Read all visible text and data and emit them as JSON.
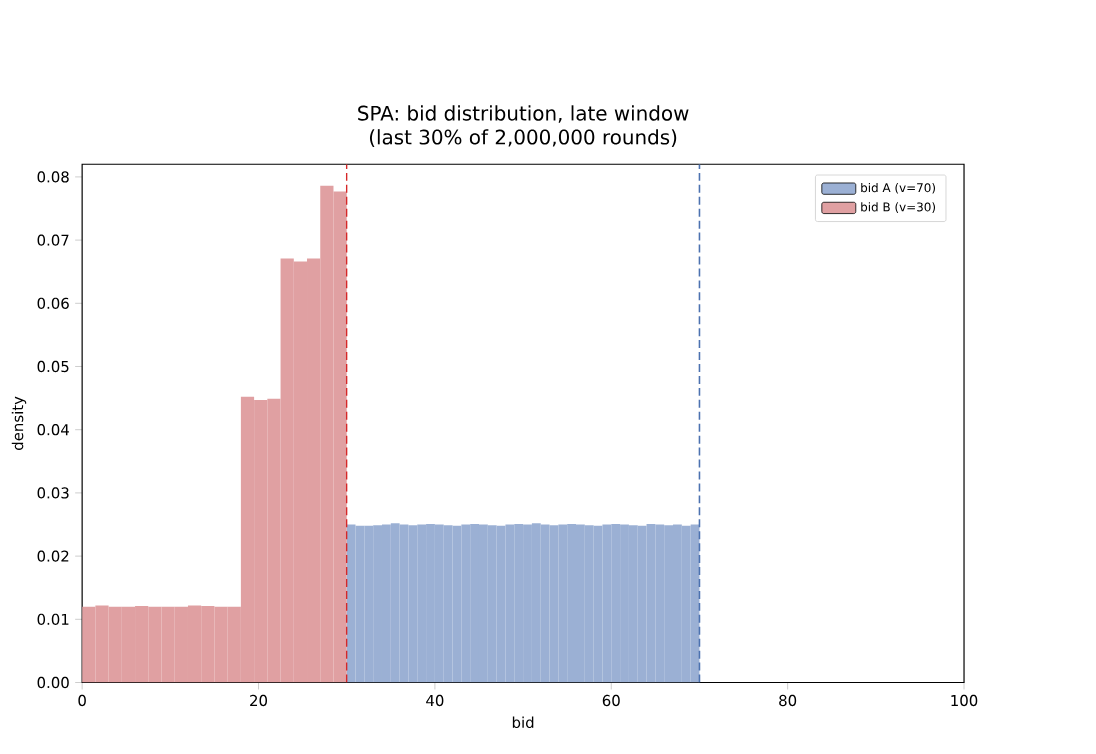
{
  "chart_data": {
    "type": "histogram",
    "title": "SPA: bid distribution, late window",
    "subtitle": "(last 30% of 2,000,000 rounds)",
    "xlabel": "bid",
    "ylabel": "density",
    "bins": [
      0,
      1.5,
      3,
      4.5,
      6,
      7.5,
      9,
      10.5,
      12,
      13.5,
      15,
      16.5,
      18,
      19.5,
      21,
      22.5,
      24,
      25.5,
      27,
      28.5,
      30,
      31,
      32,
      33,
      34,
      35,
      36,
      37,
      38,
      39,
      40,
      41,
      42,
      43,
      44,
      45,
      46,
      47,
      48,
      49,
      50,
      51,
      52,
      53,
      54,
      55,
      56,
      57,
      58,
      59,
      60,
      61,
      62,
      63,
      64,
      65,
      66,
      67,
      68,
      69,
      70
    ],
    "series": [
      {
        "name": "bid A (v=70)",
        "color": "#9bb0d4",
        "values": [
          null,
          null,
          null,
          null,
          null,
          null,
          null,
          null,
          null,
          null,
          null,
          null,
          null,
          null,
          null,
          null,
          null,
          null,
          null,
          null,
          0.025,
          0.0248,
          0.0248,
          0.0249,
          0.025,
          0.0252,
          0.025,
          0.0249,
          0.025,
          0.0251,
          0.025,
          0.0249,
          0.0248,
          0.025,
          0.0251,
          0.025,
          0.0249,
          0.0248,
          0.025,
          0.0251,
          0.025,
          0.0252,
          0.025,
          0.0249,
          0.025,
          0.0251,
          0.025,
          0.0249,
          0.0248,
          0.025,
          0.0251,
          0.025,
          0.0249,
          0.0248,
          0.0251,
          0.025,
          0.0249,
          0.025,
          0.0248,
          0.025
        ]
      },
      {
        "name": "bid B (v=30)",
        "color": "#e0a0a2",
        "values": [
          0.012,
          0.0122,
          0.012,
          0.012,
          0.0121,
          0.012,
          0.012,
          0.012,
          0.0122,
          0.0121,
          0.012,
          0.012,
          0.0452,
          0.0447,
          0.0449,
          0.0671,
          0.0666,
          0.0671,
          0.0786,
          0.0777,
          null,
          null,
          null,
          null,
          null,
          null,
          null,
          null,
          null,
          null,
          null,
          null,
          null,
          null,
          null,
          null,
          null,
          null,
          null,
          null,
          null,
          null,
          null,
          null,
          null,
          null,
          null,
          null,
          null,
          null,
          null,
          null,
          null,
          null,
          null,
          null,
          null,
          null,
          null,
          null
        ]
      }
    ],
    "ref_lines": [
      {
        "axis": "x",
        "value": 30,
        "color": "#d62728",
        "line_style": "dashed"
      },
      {
        "axis": "x",
        "value": 70,
        "color": "#4c72b0",
        "line_style": "dashed"
      }
    ],
    "xlim": [
      0,
      100
    ],
    "ylim": [
      0,
      0.082
    ],
    "xticks": [
      {
        "value": 0,
        "label": "0"
      },
      {
        "value": 20,
        "label": "20"
      },
      {
        "value": 40,
        "label": "40"
      },
      {
        "value": 60,
        "label": "60"
      },
      {
        "value": 80,
        "label": "80"
      },
      {
        "value": 100,
        "label": "100"
      }
    ],
    "yticks": [
      {
        "value": 0,
        "label": "0.00"
      },
      {
        "value": 0.01,
        "label": "0.01"
      },
      {
        "value": 0.02,
        "label": "0.02"
      },
      {
        "value": 0.03,
        "label": "0.03"
      },
      {
        "value": 0.04,
        "label": "0.04"
      },
      {
        "value": 0.05,
        "label": "0.05"
      },
      {
        "value": 0.06,
        "label": "0.06"
      },
      {
        "value": 0.07,
        "label": "0.07"
      },
      {
        "value": 0.08,
        "label": "0.08"
      }
    ],
    "legend": "top right",
    "grid": false
  }
}
